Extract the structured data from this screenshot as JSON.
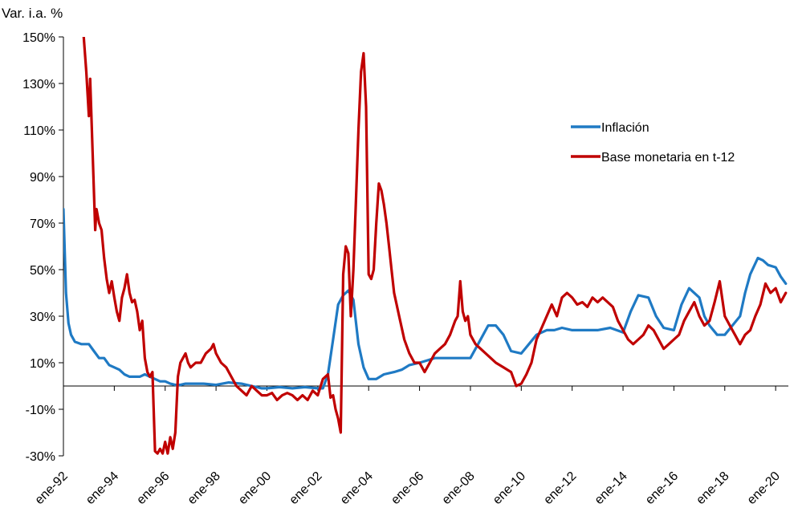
{
  "chart_data": {
    "type": "line",
    "title": "",
    "ylabel": "Var. i.a. %",
    "xlabel": "",
    "ylim": [
      -30,
      150
    ],
    "yticks": [
      -30,
      -10,
      10,
      30,
      50,
      70,
      90,
      110,
      130,
      150
    ],
    "ytick_labels": [
      "-30%",
      "-10%",
      "10%",
      "30%",
      "50%",
      "70%",
      "90%",
      "110%",
      "130%",
      "150%"
    ],
    "xlim": [
      1992.0,
      2020.5
    ],
    "xticks": [
      1992,
      1994,
      1996,
      1998,
      2000,
      2002,
      2004,
      2006,
      2008,
      2010,
      2012,
      2014,
      2016,
      2018,
      2020
    ],
    "xtick_labels": [
      "ene-92",
      "ene-94",
      "ene-96",
      "ene-98",
      "ene-00",
      "ene-02",
      "ene-04",
      "ene-06",
      "ene-08",
      "ene-10",
      "ene-12",
      "ene-14",
      "ene-16",
      "ene-18",
      "ene-20"
    ],
    "grid": false,
    "legend_position": "upper-right",
    "series": [
      {
        "name": "Inflación",
        "color": "#1f7ac4",
        "points": [
          [
            1992.0,
            76
          ],
          [
            1992.1,
            40
          ],
          [
            1992.2,
            27
          ],
          [
            1992.3,
            22
          ],
          [
            1992.45,
            19
          ],
          [
            1992.7,
            18
          ],
          [
            1993.0,
            18
          ],
          [
            1993.2,
            15
          ],
          [
            1993.4,
            12
          ],
          [
            1993.6,
            12
          ],
          [
            1993.8,
            9
          ],
          [
            1994.0,
            8
          ],
          [
            1994.2,
            7
          ],
          [
            1994.4,
            5
          ],
          [
            1994.6,
            4
          ],
          [
            1994.8,
            4
          ],
          [
            1995.0,
            4
          ],
          [
            1995.2,
            5
          ],
          [
            1995.4,
            4
          ],
          [
            1995.6,
            3
          ],
          [
            1995.8,
            2
          ],
          [
            1996.0,
            2
          ],
          [
            1996.2,
            1
          ],
          [
            1996.4,
            0.5
          ],
          [
            1996.6,
            0.5
          ],
          [
            1996.8,
            1
          ],
          [
            1997.0,
            1
          ],
          [
            1997.5,
            1
          ],
          [
            1998.0,
            0.5
          ],
          [
            1998.5,
            1.5
          ],
          [
            1999.0,
            1
          ],
          [
            1999.4,
            0
          ],
          [
            1999.8,
            -1
          ],
          [
            2000.0,
            -1
          ],
          [
            2000.5,
            -0.5
          ],
          [
            2001.0,
            -1
          ],
          [
            2001.5,
            -0.5
          ],
          [
            2002.0,
            -1
          ],
          [
            2002.2,
            -1
          ],
          [
            2002.4,
            5
          ],
          [
            2002.6,
            20
          ],
          [
            2002.8,
            35
          ],
          [
            2003.0,
            39
          ],
          [
            2003.2,
            41
          ],
          [
            2003.4,
            37
          ],
          [
            2003.6,
            18
          ],
          [
            2003.8,
            8
          ],
          [
            2004.0,
            3
          ],
          [
            2004.3,
            3
          ],
          [
            2004.6,
            5
          ],
          [
            2005.0,
            6
          ],
          [
            2005.3,
            7
          ],
          [
            2005.6,
            9
          ],
          [
            2006.0,
            10
          ],
          [
            2006.3,
            11
          ],
          [
            2006.6,
            12
          ],
          [
            2007.0,
            12
          ],
          [
            2007.5,
            12
          ],
          [
            2008.0,
            12
          ],
          [
            2008.3,
            18
          ],
          [
            2008.7,
            26
          ],
          [
            2009.0,
            26
          ],
          [
            2009.3,
            22
          ],
          [
            2009.6,
            15
          ],
          [
            2010.0,
            14
          ],
          [
            2010.3,
            18
          ],
          [
            2010.6,
            22
          ],
          [
            2011.0,
            24
          ],
          [
            2011.3,
            24
          ],
          [
            2011.6,
            25
          ],
          [
            2012.0,
            24
          ],
          [
            2012.5,
            24
          ],
          [
            2013.0,
            24
          ],
          [
            2013.5,
            25
          ],
          [
            2014.0,
            23
          ],
          [
            2014.3,
            32
          ],
          [
            2014.6,
            39
          ],
          [
            2015.0,
            38
          ],
          [
            2015.3,
            30
          ],
          [
            2015.6,
            25
          ],
          [
            2016.0,
            24
          ],
          [
            2016.3,
            35
          ],
          [
            2016.6,
            42
          ],
          [
            2017.0,
            38
          ],
          [
            2017.2,
            30
          ],
          [
            2017.4,
            26
          ],
          [
            2017.7,
            22
          ],
          [
            2018.0,
            22
          ],
          [
            2018.3,
            26
          ],
          [
            2018.6,
            30
          ],
          [
            2018.8,
            40
          ],
          [
            2019.0,
            48
          ],
          [
            2019.3,
            55
          ],
          [
            2019.5,
            54
          ],
          [
            2019.7,
            52
          ],
          [
            2020.0,
            51
          ],
          [
            2020.2,
            47
          ],
          [
            2020.4,
            44
          ]
        ]
      },
      {
        "name": "Base monetaria en t-12",
        "color": "#c00000",
        "points": [
          [
            1992.8,
            150
          ],
          [
            1992.9,
            135
          ],
          [
            1993.0,
            116
          ],
          [
            1993.05,
            132
          ],
          [
            1993.15,
            100
          ],
          [
            1993.25,
            67
          ],
          [
            1993.3,
            76
          ],
          [
            1993.4,
            70
          ],
          [
            1993.5,
            67
          ],
          [
            1993.6,
            55
          ],
          [
            1993.7,
            46
          ],
          [
            1993.8,
            40
          ],
          [
            1993.9,
            45
          ],
          [
            1994.0,
            38
          ],
          [
            1994.1,
            32
          ],
          [
            1994.2,
            28
          ],
          [
            1994.3,
            38
          ],
          [
            1994.4,
            42
          ],
          [
            1994.5,
            48
          ],
          [
            1994.6,
            40
          ],
          [
            1994.7,
            36
          ],
          [
            1994.8,
            37
          ],
          [
            1994.9,
            32
          ],
          [
            1995.0,
            24
          ],
          [
            1995.1,
            28
          ],
          [
            1995.2,
            12
          ],
          [
            1995.3,
            6
          ],
          [
            1995.4,
            4
          ],
          [
            1995.5,
            6
          ],
          [
            1995.6,
            -28
          ],
          [
            1995.7,
            -29
          ],
          [
            1995.8,
            -27
          ],
          [
            1995.9,
            -29
          ],
          [
            1996.0,
            -24
          ],
          [
            1996.1,
            -29
          ],
          [
            1996.2,
            -22
          ],
          [
            1996.3,
            -27
          ],
          [
            1996.4,
            -20
          ],
          [
            1996.5,
            4
          ],
          [
            1996.6,
            10
          ],
          [
            1996.7,
            12
          ],
          [
            1996.8,
            14
          ],
          [
            1996.9,
            10
          ],
          [
            1997.0,
            8
          ],
          [
            1997.2,
            10
          ],
          [
            1997.4,
            10
          ],
          [
            1997.6,
            14
          ],
          [
            1997.8,
            16
          ],
          [
            1997.9,
            18
          ],
          [
            1998.0,
            14
          ],
          [
            1998.2,
            10
          ],
          [
            1998.4,
            8
          ],
          [
            1998.6,
            4
          ],
          [
            1998.8,
            0
          ],
          [
            1999.0,
            -2
          ],
          [
            1999.2,
            -4
          ],
          [
            1999.4,
            0
          ],
          [
            1999.6,
            -2
          ],
          [
            1999.8,
            -4
          ],
          [
            2000.0,
            -4
          ],
          [
            2000.2,
            -3
          ],
          [
            2000.4,
            -6
          ],
          [
            2000.6,
            -4
          ],
          [
            2000.8,
            -3
          ],
          [
            2001.0,
            -4
          ],
          [
            2001.2,
            -6
          ],
          [
            2001.4,
            -4
          ],
          [
            2001.6,
            -6
          ],
          [
            2001.8,
            -2
          ],
          [
            2002.0,
            -4
          ],
          [
            2002.2,
            3
          ],
          [
            2002.4,
            5
          ],
          [
            2002.5,
            -5
          ],
          [
            2002.6,
            -4
          ],
          [
            2002.7,
            -10
          ],
          [
            2002.8,
            -14
          ],
          [
            2002.9,
            -20
          ],
          [
            2003.0,
            48
          ],
          [
            2003.1,
            60
          ],
          [
            2003.2,
            57
          ],
          [
            2003.3,
            30
          ],
          [
            2003.4,
            50
          ],
          [
            2003.5,
            80
          ],
          [
            2003.6,
            110
          ],
          [
            2003.7,
            135
          ],
          [
            2003.8,
            143
          ],
          [
            2003.9,
            120
          ],
          [
            2004.0,
            48
          ],
          [
            2004.1,
            46
          ],
          [
            2004.2,
            50
          ],
          [
            2004.3,
            70
          ],
          [
            2004.4,
            87
          ],
          [
            2004.5,
            84
          ],
          [
            2004.6,
            78
          ],
          [
            2004.7,
            70
          ],
          [
            2004.8,
            60
          ],
          [
            2004.9,
            50
          ],
          [
            2005.0,
            40
          ],
          [
            2005.2,
            30
          ],
          [
            2005.4,
            20
          ],
          [
            2005.6,
            14
          ],
          [
            2005.8,
            10
          ],
          [
            2006.0,
            10
          ],
          [
            2006.2,
            6
          ],
          [
            2006.4,
            10
          ],
          [
            2006.6,
            14
          ],
          [
            2006.8,
            16
          ],
          [
            2007.0,
            18
          ],
          [
            2007.2,
            22
          ],
          [
            2007.4,
            28
          ],
          [
            2007.5,
            30
          ],
          [
            2007.6,
            45
          ],
          [
            2007.7,
            32
          ],
          [
            2007.8,
            28
          ],
          [
            2007.9,
            30
          ],
          [
            2008.0,
            22
          ],
          [
            2008.2,
            18
          ],
          [
            2008.4,
            16
          ],
          [
            2008.6,
            14
          ],
          [
            2008.8,
            12
          ],
          [
            2009.0,
            10
          ],
          [
            2009.3,
            8
          ],
          [
            2009.6,
            6
          ],
          [
            2009.8,
            0
          ],
          [
            2010.0,
            1
          ],
          [
            2010.2,
            5
          ],
          [
            2010.4,
            10
          ],
          [
            2010.6,
            20
          ],
          [
            2010.8,
            25
          ],
          [
            2011.0,
            30
          ],
          [
            2011.2,
            35
          ],
          [
            2011.4,
            30
          ],
          [
            2011.6,
            38
          ],
          [
            2011.8,
            40
          ],
          [
            2012.0,
            38
          ],
          [
            2012.2,
            35
          ],
          [
            2012.4,
            36
          ],
          [
            2012.6,
            34
          ],
          [
            2012.8,
            38
          ],
          [
            2013.0,
            36
          ],
          [
            2013.2,
            38
          ],
          [
            2013.4,
            36
          ],
          [
            2013.6,
            34
          ],
          [
            2013.8,
            28
          ],
          [
            2014.0,
            24
          ],
          [
            2014.2,
            20
          ],
          [
            2014.4,
            18
          ],
          [
            2014.6,
            20
          ],
          [
            2014.8,
            22
          ],
          [
            2015.0,
            26
          ],
          [
            2015.2,
            24
          ],
          [
            2015.4,
            20
          ],
          [
            2015.6,
            16
          ],
          [
            2015.8,
            18
          ],
          [
            2016.0,
            20
          ],
          [
            2016.2,
            22
          ],
          [
            2016.4,
            28
          ],
          [
            2016.6,
            32
          ],
          [
            2016.8,
            36
          ],
          [
            2017.0,
            30
          ],
          [
            2017.2,
            26
          ],
          [
            2017.4,
            28
          ],
          [
            2017.6,
            36
          ],
          [
            2017.8,
            45
          ],
          [
            2018.0,
            30
          ],
          [
            2018.2,
            26
          ],
          [
            2018.4,
            22
          ],
          [
            2018.6,
            18
          ],
          [
            2018.8,
            22
          ],
          [
            2019.0,
            24
          ],
          [
            2019.2,
            30
          ],
          [
            2019.4,
            35
          ],
          [
            2019.6,
            44
          ],
          [
            2019.8,
            40
          ],
          [
            2020.0,
            42
          ],
          [
            2020.2,
            36
          ],
          [
            2020.4,
            40
          ]
        ]
      }
    ]
  }
}
